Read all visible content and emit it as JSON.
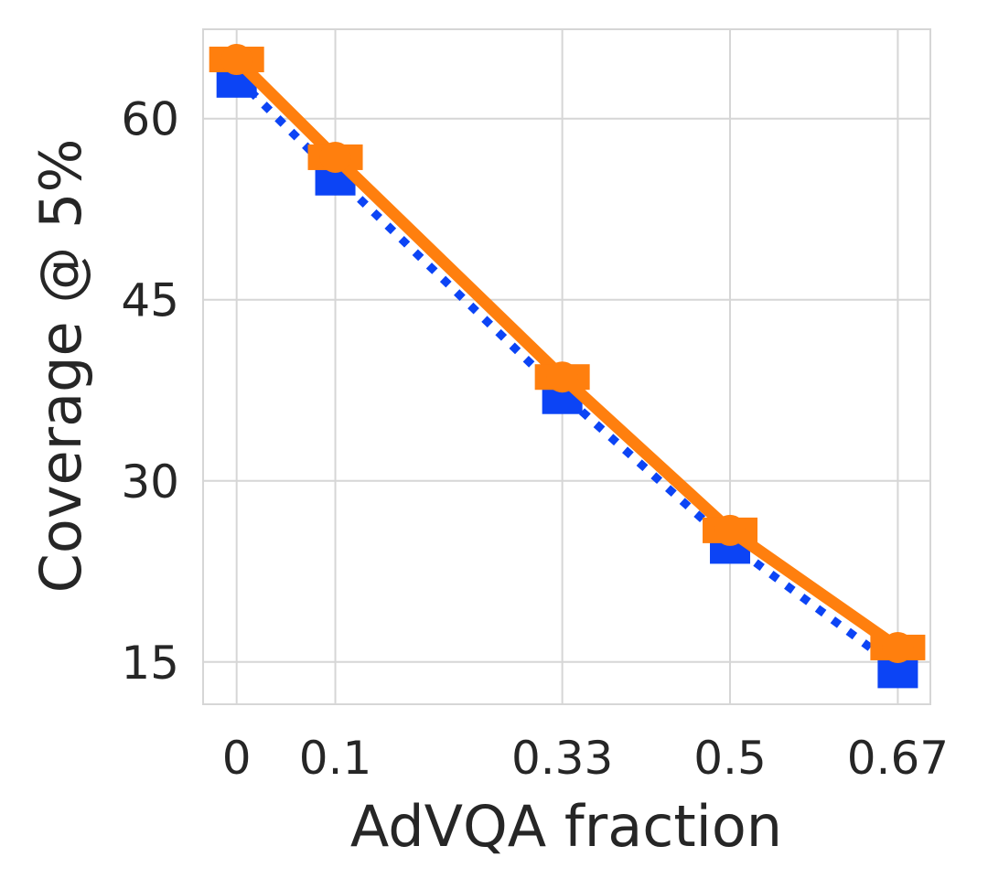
{
  "chart_data": {
    "type": "line",
    "xlabel": "AdVQA fraction",
    "ylabel": "Coverage @ 5%",
    "x": [
      0,
      0.1,
      0.33,
      0.5,
      0.67
    ],
    "x_tick_labels": [
      "0",
      "0.1",
      "0.33",
      "0.5",
      "0.67"
    ],
    "y_ticks": [
      15,
      30,
      45,
      60
    ],
    "xlim": [
      -0.034,
      0.703
    ],
    "ylim": [
      11.5,
      67.4
    ],
    "grid": true,
    "legend": "none",
    "series": [
      {
        "name": "blue-dotted-square",
        "color": "#0c44f5",
        "line_style": "dotted",
        "marker": "square",
        "values": [
          63.4,
          55.3,
          37.2,
          24.8,
          14.5
        ]
      },
      {
        "name": "orange-solid-circle",
        "color": "#ff7f0e",
        "line_style": "solid",
        "marker": "circle",
        "values": [
          64.9,
          56.8,
          38.6,
          25.9,
          16.2
        ]
      }
    ]
  }
}
